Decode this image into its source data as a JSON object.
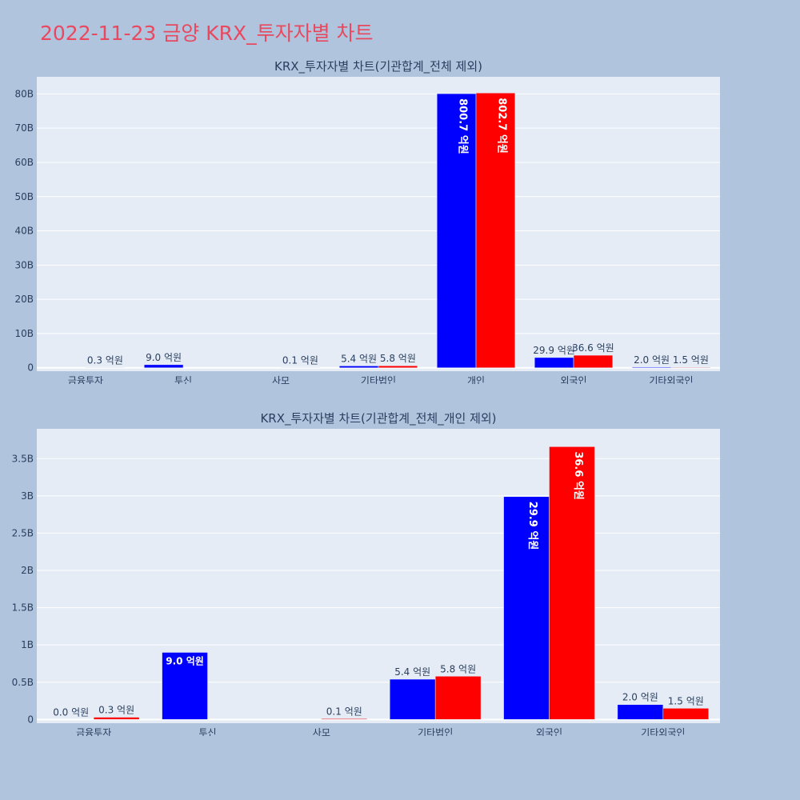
{
  "page": {
    "title": "2022-11-23 금양 KRX_투자자별 차트",
    "background": "#b0c4de",
    "title_color": "#e8495f"
  },
  "series_colors": {
    "blue": "#0000ff",
    "red": "#ff0000"
  },
  "chart_data": [
    {
      "type": "bar",
      "title": "KRX_투자자별 차트(기관합계_전체 제외)",
      "xlabel": "",
      "ylabel": "",
      "categories": [
        "금융투자",
        "투신",
        "사모",
        "기타법인",
        "개인",
        "외국인",
        "기타외국인"
      ],
      "ylim": [
        -1000000000,
        85000000000
      ],
      "yticks": [
        0,
        10000000000,
        20000000000,
        30000000000,
        40000000000,
        50000000000,
        60000000000,
        70000000000,
        80000000000
      ],
      "ytick_labels": [
        "0",
        "10B",
        "20B",
        "30B",
        "40B",
        "50B",
        "60B",
        "70B",
        "80B"
      ],
      "grid": true,
      "series": [
        {
          "color": "#0000ff",
          "values": [
            0,
            900000000,
            0,
            540000000,
            80070000000,
            2990000000,
            200000000
          ],
          "labels": [
            "",
            "9.0 억원",
            "",
            "5.4 억원",
            "800.7 억원",
            "29.9 억원",
            "2.0 억원"
          ]
        },
        {
          "color": "#ff0000",
          "values": [
            30000000,
            0,
            10000000,
            580000000,
            80270000000,
            3660000000,
            150000000
          ],
          "labels": [
            "0.3 억원",
            "",
            "0.1 억원",
            "5.8 억원",
            "802.7 억원",
            "36.6 억원",
            "1.5 억원"
          ]
        }
      ]
    },
    {
      "type": "bar",
      "title": "KRX_투자자별 차트(기관합계_전체_개인 제외)",
      "xlabel": "",
      "ylabel": "",
      "categories": [
        "금융투자",
        "투신",
        "사모",
        "기타법인",
        "외국인",
        "기타외국인"
      ],
      "ylim": [
        -50000000,
        3900000000
      ],
      "yticks": [
        0,
        500000000,
        1000000000,
        1500000000,
        2000000000,
        2500000000,
        3000000000,
        3500000000
      ],
      "ytick_labels": [
        "0",
        "0.5B",
        "1B",
        "1.5B",
        "2B",
        "2.5B",
        "3B",
        "3.5B"
      ],
      "grid": true,
      "series": [
        {
          "color": "#0000ff",
          "values": [
            0,
            900000000,
            0,
            540000000,
            2990000000,
            200000000
          ],
          "labels": [
            "0.0 억원",
            "9.0 억원",
            "",
            "5.4 억원",
            "29.9 억원",
            "2.0 억원"
          ]
        },
        {
          "color": "#ff0000",
          "values": [
            30000000,
            0,
            10000000,
            580000000,
            3660000000,
            150000000
          ],
          "labels": [
            "0.3 억원",
            "",
            "0.1 억원",
            "5.8 억원",
            "36.6 억원",
            "1.5 억원"
          ]
        }
      ]
    }
  ]
}
